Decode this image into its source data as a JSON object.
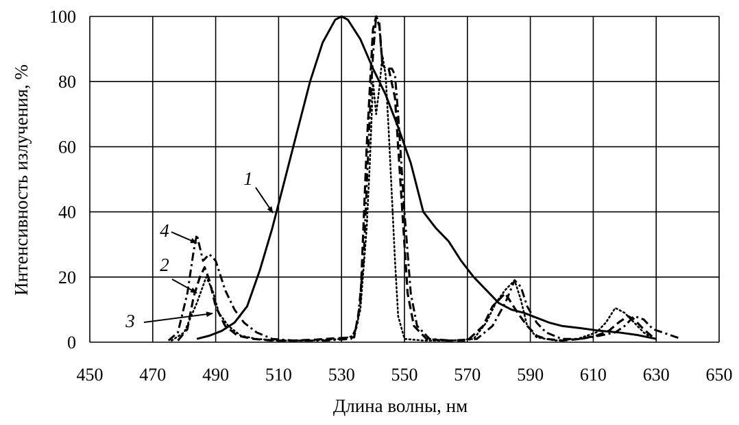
{
  "chart_data": {
    "type": "line",
    "xlabel": "Длина волны, нм",
    "ylabel": "Интенсивность излучения, %",
    "xlim": [
      450,
      650
    ],
    "ylim": [
      0,
      100
    ],
    "x_ticks": [
      "450",
      "470",
      "490",
      "510",
      "530",
      "550",
      "570",
      "590",
      "610",
      "630",
      "650"
    ],
    "y_ticks": [
      "0",
      "20",
      "40",
      "60",
      "80",
      "100"
    ],
    "grid": true,
    "legend": "none",
    "series": [
      {
        "name": "1",
        "line_style": "solid",
        "points": [
          [
            484,
            1
          ],
          [
            488,
            2
          ],
          [
            492,
            3.5
          ],
          [
            496,
            6
          ],
          [
            500,
            11
          ],
          [
            504,
            22
          ],
          [
            508,
            35
          ],
          [
            512,
            50
          ],
          [
            516,
            65
          ],
          [
            520,
            80
          ],
          [
            524,
            92
          ],
          [
            528,
            99
          ],
          [
            530,
            100
          ],
          [
            532,
            99
          ],
          [
            536,
            93
          ],
          [
            540,
            84
          ],
          [
            544,
            76
          ],
          [
            548,
            66
          ],
          [
            552,
            55
          ],
          [
            556,
            40
          ],
          [
            560,
            35
          ],
          [
            564,
            31
          ],
          [
            568,
            25
          ],
          [
            572,
            20
          ],
          [
            576,
            16
          ],
          [
            580,
            12
          ],
          [
            584,
            10
          ],
          [
            588,
            9
          ],
          [
            592,
            7.5
          ],
          [
            596,
            6
          ],
          [
            600,
            5
          ],
          [
            606,
            4.3
          ],
          [
            612,
            3.5
          ],
          [
            618,
            3
          ],
          [
            624,
            2.2
          ],
          [
            630,
            1
          ]
        ]
      },
      {
        "name": "2",
        "line_style": "dashed",
        "points": [
          [
            478,
            0.5
          ],
          [
            481,
            4
          ],
          [
            483,
            14
          ],
          [
            485,
            20
          ],
          [
            486.5,
            23
          ],
          [
            488,
            19
          ],
          [
            490,
            11
          ],
          [
            493,
            5
          ],
          [
            497,
            2
          ],
          [
            502,
            1
          ],
          [
            508,
            0.5
          ],
          [
            515,
            0.5
          ],
          [
            522,
            0.8
          ],
          [
            528,
            1.2
          ],
          [
            534,
            1.5
          ],
          [
            536,
            12
          ],
          [
            538,
            60
          ],
          [
            540,
            96
          ],
          [
            541,
            100
          ],
          [
            542,
            98
          ],
          [
            543,
            85
          ],
          [
            545,
            84
          ],
          [
            547,
            75
          ],
          [
            549,
            45
          ],
          [
            551,
            15
          ],
          [
            553,
            5
          ],
          [
            557,
            1
          ],
          [
            562,
            0.5
          ],
          [
            570,
            0.5
          ],
          [
            575,
            5
          ],
          [
            578,
            11
          ],
          [
            582,
            15
          ],
          [
            586,
            9
          ],
          [
            589,
            5
          ],
          [
            592,
            2
          ],
          [
            595,
            1
          ],
          [
            600,
            0.5
          ],
          [
            606,
            1
          ],
          [
            611,
            2
          ],
          [
            615,
            3.5
          ],
          [
            618,
            6
          ],
          [
            621,
            8
          ],
          [
            623,
            7
          ],
          [
            626,
            4
          ],
          [
            629,
            1.5
          ]
        ]
      },
      {
        "name": "3",
        "line_style": "dotted",
        "points": [
          [
            476,
            0.5
          ],
          [
            480,
            3
          ],
          [
            484,
            12
          ],
          [
            487,
            20
          ],
          [
            489,
            16
          ],
          [
            491,
            9
          ],
          [
            494,
            5
          ],
          [
            498,
            2
          ],
          [
            503,
            1
          ],
          [
            510,
            0.5
          ],
          [
            520,
            0.5
          ],
          [
            530,
            1
          ],
          [
            534,
            2
          ],
          [
            536,
            10
          ],
          [
            538,
            35
          ],
          [
            539,
            55
          ],
          [
            540,
            80
          ],
          [
            541,
            70
          ],
          [
            542,
            78
          ],
          [
            543,
            88
          ],
          [
            544,
            82
          ],
          [
            545,
            65
          ],
          [
            546,
            45
          ],
          [
            547,
            25
          ],
          [
            548,
            8
          ],
          [
            550,
            1
          ],
          [
            556,
            0.5
          ],
          [
            565,
            0.5
          ],
          [
            572,
            1
          ],
          [
            576,
            6
          ],
          [
            579,
            12
          ],
          [
            582,
            16
          ],
          [
            585,
            19
          ],
          [
            587,
            13
          ],
          [
            589,
            5
          ],
          [
            592,
            1.5
          ],
          [
            598,
            0.5
          ],
          [
            605,
            1
          ],
          [
            611,
            3
          ],
          [
            614,
            6
          ],
          [
            617,
            10.5
          ],
          [
            620,
            9
          ],
          [
            623,
            6
          ],
          [
            626,
            3
          ],
          [
            629,
            1
          ]
        ]
      },
      {
        "name": "4",
        "line_style": "dash-dot",
        "points": [
          [
            475,
            0.5
          ],
          [
            478,
            3
          ],
          [
            481,
            15
          ],
          [
            483,
            28
          ],
          [
            484,
            33
          ],
          [
            486,
            25
          ],
          [
            488,
            27
          ],
          [
            490,
            25
          ],
          [
            493,
            16
          ],
          [
            496,
            10
          ],
          [
            499,
            6
          ],
          [
            503,
            3
          ],
          [
            508,
            1
          ],
          [
            515,
            0.5
          ],
          [
            525,
            0.5
          ],
          [
            533,
            1
          ],
          [
            535,
            5
          ],
          [
            537,
            25
          ],
          [
            539,
            70
          ],
          [
            540,
            88
          ],
          [
            541,
            100
          ],
          [
            542,
            97
          ],
          [
            543,
            85
          ],
          [
            544,
            84
          ],
          [
            546,
            84
          ],
          [
            547,
            82
          ],
          [
            548,
            70
          ],
          [
            550,
            40
          ],
          [
            552,
            15
          ],
          [
            554,
            5
          ],
          [
            558,
            1
          ],
          [
            565,
            0.5
          ],
          [
            573,
            1
          ],
          [
            578,
            5
          ],
          [
            582,
            12
          ],
          [
            585,
            19
          ],
          [
            587,
            17
          ],
          [
            589,
            11
          ],
          [
            592,
            6
          ],
          [
            595,
            3
          ],
          [
            600,
            1
          ],
          [
            606,
            1
          ],
          [
            612,
            2
          ],
          [
            617,
            3
          ],
          [
            620,
            5
          ],
          [
            623,
            8
          ],
          [
            626,
            7
          ],
          [
            629,
            4
          ],
          [
            632,
            3
          ],
          [
            635,
            2
          ],
          [
            638,
            1
          ]
        ]
      }
    ]
  },
  "annotations": [
    {
      "label": "1"
    },
    {
      "label": "2"
    },
    {
      "label": "3"
    },
    {
      "label": "4"
    }
  ]
}
